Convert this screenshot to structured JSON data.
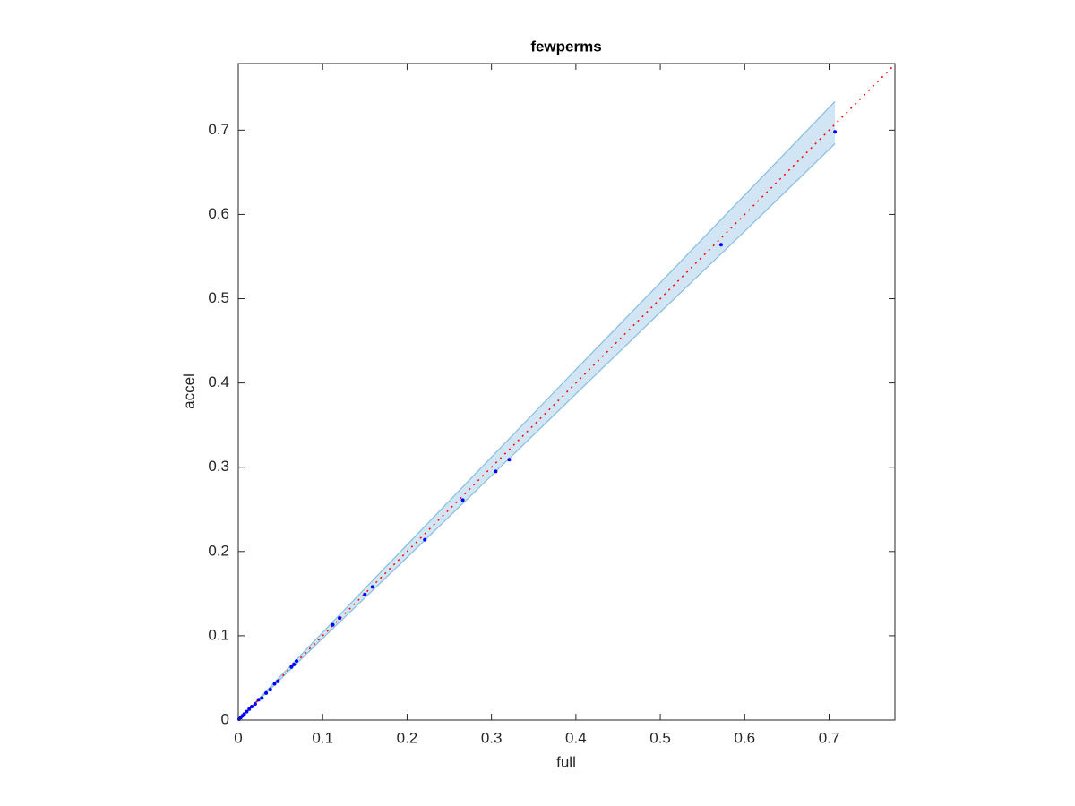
{
  "chart_data": {
    "type": "scatter",
    "title": "fewperms",
    "x_label": "full",
    "y_label": "accel",
    "xlim": [
      0,
      0.778
    ],
    "ylim": [
      0,
      0.779
    ],
    "xticks": [
      0,
      0.1,
      0.2,
      0.3,
      0.4,
      0.5,
      0.6,
      0.7
    ],
    "yticks": [
      0,
      0.1,
      0.2,
      0.3,
      0.4,
      0.5,
      0.6,
      0.7
    ],
    "series": [
      {
        "color": "#0000ff",
        "x": [
          0.707,
          0.572,
          0.321,
          0.305,
          0.266,
          0.221,
          0.159,
          0.15,
          0.12,
          0.112,
          0.069,
          0.066,
          0.063,
          0.047,
          0.043,
          0.038,
          0.033,
          0.028,
          0.024,
          0.02,
          0.016,
          0.013,
          0.01,
          0.007,
          0.005,
          0.003,
          0.001
        ],
        "values": [
          0.698,
          0.564,
          0.309,
          0.295,
          0.261,
          0.214,
          0.158,
          0.149,
          0.121,
          0.113,
          0.07,
          0.066,
          0.063,
          0.046,
          0.043,
          0.036,
          0.032,
          0.026,
          0.024,
          0.019,
          0.016,
          0.013,
          0.01,
          0.007,
          0.005,
          0.003,
          0.001
        ]
      }
    ],
    "band": {
      "color": "#d2e5f4",
      "edge_color": "#86bde0",
      "x": [
        0,
        0.1,
        0.2,
        0.3,
        0.4,
        0.5,
        0.6,
        0.707
      ],
      "upper": [
        0,
        0.104,
        0.208,
        0.312,
        0.416,
        0.519,
        0.623,
        0.734
      ],
      "lower": [
        0,
        0.097,
        0.193,
        0.29,
        0.387,
        0.484,
        0.58,
        0.684
      ]
    },
    "reference_line": {
      "color": "#ff0000",
      "x": [
        0,
        0.778
      ],
      "values": [
        0,
        0.778
      ]
    }
  }
}
